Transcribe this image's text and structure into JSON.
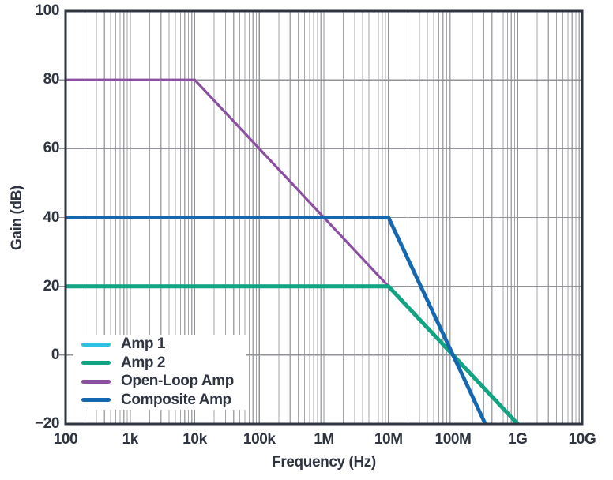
{
  "figure": {
    "background_color": "#ffffff",
    "text_color": "#2E3440",
    "axis_border_color": "#2E3440",
    "grid_major_color": "#929398",
    "grid_minor_color": "#A5A6AB",
    "legend_background_color": "#ffffff"
  },
  "chart_data": {
    "type": "line",
    "title": "",
    "xlabel": "Frequency (Hz)",
    "ylabel": "Gain (dB)",
    "x_scale": "log",
    "xlim": [
      100,
      10000000000
    ],
    "ylim": [
      -20,
      100
    ],
    "grid": "major + log minor verticals, on",
    "legend_position": "lower left",
    "x_ticks": [
      {
        "value": 100,
        "label": "100"
      },
      {
        "value": 1000,
        "label": "1k"
      },
      {
        "value": 10000,
        "label": "10k"
      },
      {
        "value": 100000,
        "label": "100k"
      },
      {
        "value": 1000000,
        "label": "1M"
      },
      {
        "value": 10000000,
        "label": "10M"
      },
      {
        "value": 100000000,
        "label": "100M"
      },
      {
        "value": 1000000000,
        "label": "1G"
      },
      {
        "value": 10000000000,
        "label": "10G"
      }
    ],
    "y_ticks": [
      {
        "value": 100,
        "label": "100"
      },
      {
        "value": 80,
        "label": "80"
      },
      {
        "value": 60,
        "label": "60"
      },
      {
        "value": 40,
        "label": "40"
      },
      {
        "value": 20,
        "label": "20"
      },
      {
        "value": 0,
        "label": "0"
      },
      {
        "value": -20,
        "label": "−20"
      }
    ],
    "series": [
      {
        "name": "Amp 1",
        "color": "#2FBFE3",
        "flat_gain_db": 20,
        "corner_frequency_hz": 10000000,
        "rolloff_db_per_decade": -20,
        "points": [
          [
            100,
            20
          ],
          [
            10000000,
            20
          ],
          [
            1000000000,
            -20
          ]
        ]
      },
      {
        "name": "Amp 2",
        "color": "#12A383",
        "flat_gain_db": 20,
        "corner_frequency_hz": 10000000,
        "rolloff_db_per_decade": -20,
        "points": [
          [
            100,
            20
          ],
          [
            10000000,
            20
          ],
          [
            1000000000,
            -20
          ]
        ]
      },
      {
        "name": "Open-Loop Amp",
        "color": "#8A4F9F",
        "flat_gain_db": 80,
        "corner_frequency_hz": 10000,
        "rolloff_db_per_decade": -20,
        "points": [
          [
            100,
            80
          ],
          [
            10000,
            80
          ],
          [
            1000000000,
            -20
          ]
        ]
      },
      {
        "name": "Composite Amp",
        "color": "#1568AF",
        "flat_gain_db": 40,
        "corner_frequency_hz": 10000000,
        "rolloff_db_per_decade": -40,
        "points": [
          [
            100,
            40
          ],
          [
            10000000,
            40
          ],
          [
            316227766,
            -20
          ]
        ]
      }
    ]
  }
}
